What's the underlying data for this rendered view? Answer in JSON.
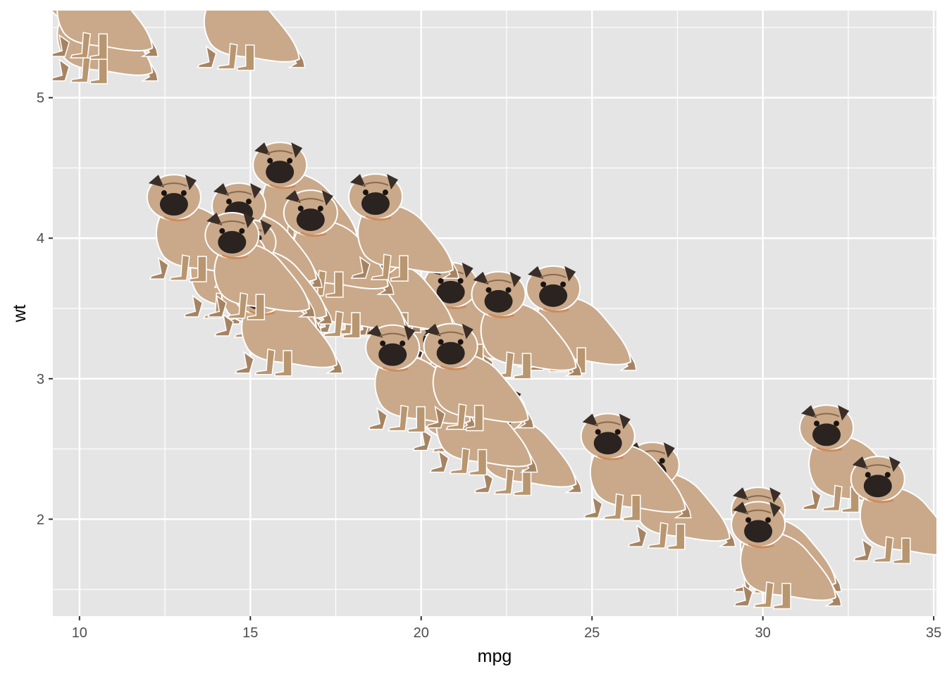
{
  "chart_data": {
    "type": "scatter",
    "title": "",
    "xlabel": "mpg",
    "ylabel": "wt",
    "xlim": [
      9.22,
      35.08
    ],
    "ylim": [
      1.31,
      5.62
    ],
    "x_ticks": [
      10,
      15,
      20,
      25,
      30,
      35
    ],
    "y_ticks": [
      2,
      3,
      4,
      5
    ],
    "x_tick_labels": [
      "10",
      "15",
      "20",
      "25",
      "30",
      "35"
    ],
    "y_tick_labels": [
      "2",
      "3",
      "4",
      "5"
    ],
    "grid": true,
    "marker": "pug-image",
    "legend": "none",
    "colors": {
      "panel": "#e5e5e5",
      "grid": "#ffffff",
      "fur": "#c9a98a",
      "fur_shadow": "#a68463",
      "muzzle": "#2a2320",
      "ears": "#3a2e28"
    },
    "points": [
      {
        "x": 21.0,
        "y": 2.62
      },
      {
        "x": 21.0,
        "y": 2.875
      },
      {
        "x": 22.8,
        "y": 2.32
      },
      {
        "x": 21.4,
        "y": 3.215
      },
      {
        "x": 18.7,
        "y": 3.44
      },
      {
        "x": 18.1,
        "y": 3.46
      },
      {
        "x": 14.3,
        "y": 3.57
      },
      {
        "x": 24.4,
        "y": 3.19
      },
      {
        "x": 22.8,
        "y": 3.15
      },
      {
        "x": 19.2,
        "y": 3.44
      },
      {
        "x": 17.8,
        "y": 3.44
      },
      {
        "x": 16.4,
        "y": 4.07
      },
      {
        "x": 17.3,
        "y": 3.73
      },
      {
        "x": 15.2,
        "y": 3.78
      },
      {
        "x": 10.4,
        "y": 5.25
      },
      {
        "x": 10.4,
        "y": 5.424
      },
      {
        "x": 14.7,
        "y": 5.345
      },
      {
        "x": 32.4,
        "y": 2.2
      },
      {
        "x": 30.4,
        "y": 1.615
      },
      {
        "x": 33.9,
        "y": 1.835
      },
      {
        "x": 21.5,
        "y": 2.465
      },
      {
        "x": 15.5,
        "y": 3.52
      },
      {
        "x": 15.2,
        "y": 3.435
      },
      {
        "x": 13.3,
        "y": 3.84
      },
      {
        "x": 19.2,
        "y": 3.845
      },
      {
        "x": 27.3,
        "y": 1.935
      },
      {
        "x": 26.0,
        "y": 2.14
      },
      {
        "x": 30.4,
        "y": 1.513
      },
      {
        "x": 15.8,
        "y": 3.17
      },
      {
        "x": 19.7,
        "y": 2.77
      },
      {
        "x": 15.0,
        "y": 3.57
      },
      {
        "x": 21.4,
        "y": 2.78
      }
    ]
  }
}
